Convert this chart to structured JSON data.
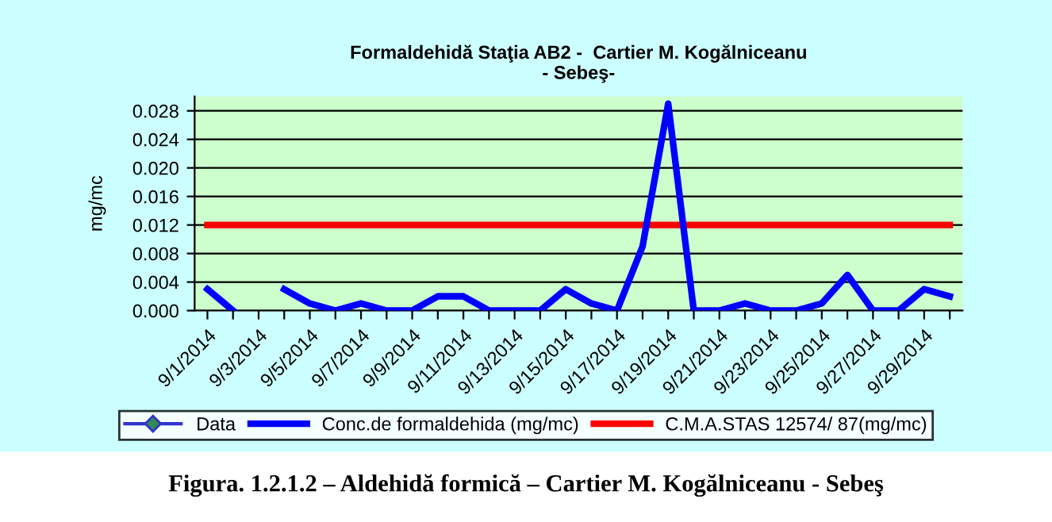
{
  "chart_data": {
    "type": "line",
    "title": "Formaldehidă Staţia AB2 -  Cartier M. Kogălniceanu\n- Sebeş-",
    "ylabel": "mg/mc",
    "categories": [
      "9/1/2014",
      null,
      "9/3/2014",
      null,
      "9/5/2014",
      null,
      "9/7/2014",
      null,
      "9/9/2014",
      null,
      "9/11/2014",
      null,
      "9/13/2014",
      null,
      "9/15/2014",
      null,
      "9/17/2014",
      null,
      "9/19/2014",
      null,
      "9/21/2014",
      null,
      "9/23/2014",
      null,
      "9/25/2014",
      null,
      "9/27/2014",
      null,
      "9/29/2014",
      null
    ],
    "series": [
      {
        "name": "Data",
        "color": "#3333cc",
        "marker": "diamond",
        "values": [
          null,
          null,
          null,
          null,
          null,
          null,
          null,
          null,
          null,
          null,
          null,
          null,
          null,
          null,
          null,
          null,
          null,
          null,
          null,
          null,
          null,
          null,
          null,
          null,
          null,
          null,
          null,
          null,
          null,
          null
        ]
      },
      {
        "name": "Conc.de formaldehida (mg/mc)",
        "color": "#0000ff",
        "values": [
          0.003,
          0.0,
          null,
          0.003,
          0.001,
          0.0,
          0.001,
          0.0,
          0.0,
          0.002,
          0.002,
          0.0,
          0.0,
          0.0,
          0.003,
          0.001,
          0.0,
          0.009,
          0.029,
          0.0,
          0.0,
          0.001,
          0.0,
          0.0,
          0.001,
          0.005,
          0.0,
          0.0,
          0.003,
          0.002
        ]
      },
      {
        "name": "C.M.A.STAS 12574/ 87(mg/mc)",
        "color": "#ff0000",
        "values": [
          0.012,
          0.012,
          0.012,
          0.012,
          0.012,
          0.012,
          0.012,
          0.012,
          0.012,
          0.012,
          0.012,
          0.012,
          0.012,
          0.012,
          0.012,
          0.012,
          0.012,
          0.012,
          0.012,
          0.012,
          0.012,
          0.012,
          0.012,
          0.012,
          0.012,
          0.012,
          0.012,
          0.012,
          0.012,
          0.012
        ]
      }
    ],
    "ylim": [
      0,
      0.03
    ],
    "yticks": [
      {
        "value": 0,
        "label": "0.000"
      },
      {
        "value": 0.004,
        "label": "0.004"
      },
      {
        "value": 0.008,
        "label": "0.008"
      },
      {
        "value": 0.012,
        "label": "0.012"
      },
      {
        "value": 0.016,
        "label": "0.016"
      },
      {
        "value": 0.02,
        "label": "0.020"
      },
      {
        "value": 0.024,
        "label": "0.024"
      },
      {
        "value": 0.028,
        "label": "0.028"
      }
    ],
    "grid": "y",
    "legend": "bottom",
    "annotations": [
      "Figura. 1.2.1.2 – Aldehidă formică – Cartier M. Kogălniceanu - Sebeş"
    ]
  }
}
